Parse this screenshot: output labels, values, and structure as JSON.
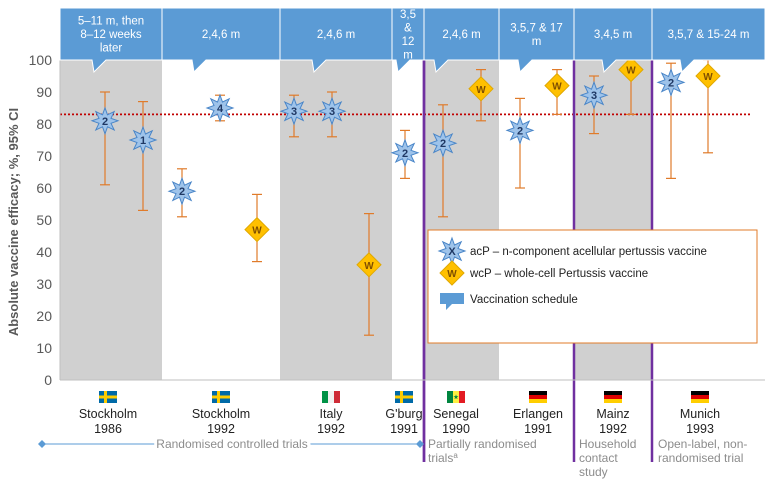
{
  "chart_data": {
    "type": "scatter",
    "ylabel": "Absolute vaccine efficacy; %, 95% CI",
    "ylim": [
      0,
      100
    ],
    "yticks": [
      0,
      10,
      20,
      30,
      40,
      50,
      60,
      70,
      80,
      90,
      100
    ],
    "reference_line": 83,
    "colors": {
      "band": "#d0d0d0",
      "schedule": "#5b9bd5",
      "schedule_text": "#ffffff",
      "ci": "#e07b2a",
      "acp_marker": "#9ec3ea",
      "acp_edge": "#4a86c8",
      "wcp_marker": "#ffc000",
      "divider": "#7030a0",
      "reference": "#c00000",
      "label_grey": "#8c8c8c"
    },
    "trials": [
      {
        "place": "Stockholm",
        "year": "1986",
        "schedule": "5–11 m, then 8–12 weeks later",
        "flag": "sweden",
        "shaded": true
      },
      {
        "place": "Stockholm",
        "year": "1992",
        "schedule": "2,4,6 m",
        "flag": "sweden",
        "shaded": false
      },
      {
        "place": "Italy",
        "year": "1992",
        "schedule": "2,4,6 m",
        "flag": "italy",
        "shaded": true
      },
      {
        "place": "G'burg",
        "year": "1991",
        "schedule": "3,5 & 12 m",
        "flag": "sweden",
        "shaded": false
      },
      {
        "place": "Senegal",
        "year": "1990",
        "schedule": "2,4,6 m",
        "flag": "senegal",
        "shaded": true
      },
      {
        "place": "Erlangen",
        "year": "1991",
        "schedule": "3,5,7 & 17 m",
        "flag": "germany",
        "shaded": false
      },
      {
        "place": "Mainz",
        "year": "1992",
        "schedule": "3,4,5 m",
        "flag": "germany",
        "shaded": true
      },
      {
        "place": "Munich",
        "year": "1993",
        "schedule": "3,5,7 & 15-24 m",
        "flag": "germany",
        "shaded": false
      }
    ],
    "points": [
      {
        "trial": 0,
        "type": "acP",
        "label": "2",
        "value": 81,
        "ci": [
          61,
          90
        ]
      },
      {
        "trial": 0,
        "type": "acP",
        "label": "1",
        "value": 75,
        "ci": [
          53,
          87
        ]
      },
      {
        "trial": 1,
        "type": "acP",
        "label": "2",
        "value": 59,
        "ci": [
          51,
          66
        ]
      },
      {
        "trial": 1,
        "type": "acP",
        "label": "4",
        "value": 85,
        "ci": [
          81,
          89
        ]
      },
      {
        "trial": 1,
        "type": "wcP",
        "label": "W",
        "value": 47,
        "ci": [
          37,
          58
        ]
      },
      {
        "trial": 2,
        "type": "acP",
        "label": "3",
        "value": 84,
        "ci": [
          76,
          89
        ]
      },
      {
        "trial": 2,
        "type": "acP",
        "label": "3",
        "value": 84,
        "ci": [
          76,
          90
        ]
      },
      {
        "trial": 2,
        "type": "wcP",
        "label": "W",
        "value": 36,
        "ci": [
          14,
          52
        ]
      },
      {
        "trial": 3,
        "type": "acP",
        "label": "2",
        "value": 71,
        "ci": [
          63,
          78
        ]
      },
      {
        "trial": 4,
        "type": "acP",
        "label": "2",
        "value": 74,
        "ci": [
          51,
          86
        ]
      },
      {
        "trial": 4,
        "type": "wcP",
        "label": "W",
        "value": 91,
        "ci": [
          81,
          97
        ]
      },
      {
        "trial": 5,
        "type": "acP",
        "label": "2",
        "value": 78,
        "ci": [
          60,
          88
        ]
      },
      {
        "trial": 5,
        "type": "wcP",
        "label": "W",
        "value": 92,
        "ci": [
          83,
          97
        ]
      },
      {
        "trial": 6,
        "type": "acP",
        "label": "3",
        "value": 89,
        "ci": [
          77,
          95
        ]
      },
      {
        "trial": 6,
        "type": "wcP",
        "label": "W",
        "value": 97,
        "ci": [
          83,
          100
        ]
      },
      {
        "trial": 7,
        "type": "acP",
        "label": "2",
        "value": 93,
        "ci": [
          63,
          99
        ]
      },
      {
        "trial": 7,
        "type": "wcP",
        "label": "W",
        "value": 95,
        "ci": [
          71,
          100
        ]
      }
    ],
    "legend": {
      "acp_symbol": "X",
      "acp_label": "acP – n-component acellular pertussis vaccine",
      "wcp_symbol": "W",
      "wcp_label": "wcP – whole-cell Pertussis vaccine",
      "schedule_label": "Vaccination schedule"
    },
    "groups": [
      {
        "label": "Randomised controlled trials"
      },
      {
        "label": "Partially randomised trials",
        "sup": "a"
      },
      {
        "label": "Household contact study"
      },
      {
        "label": "Open-label, non-randomised trial"
      }
    ]
  }
}
